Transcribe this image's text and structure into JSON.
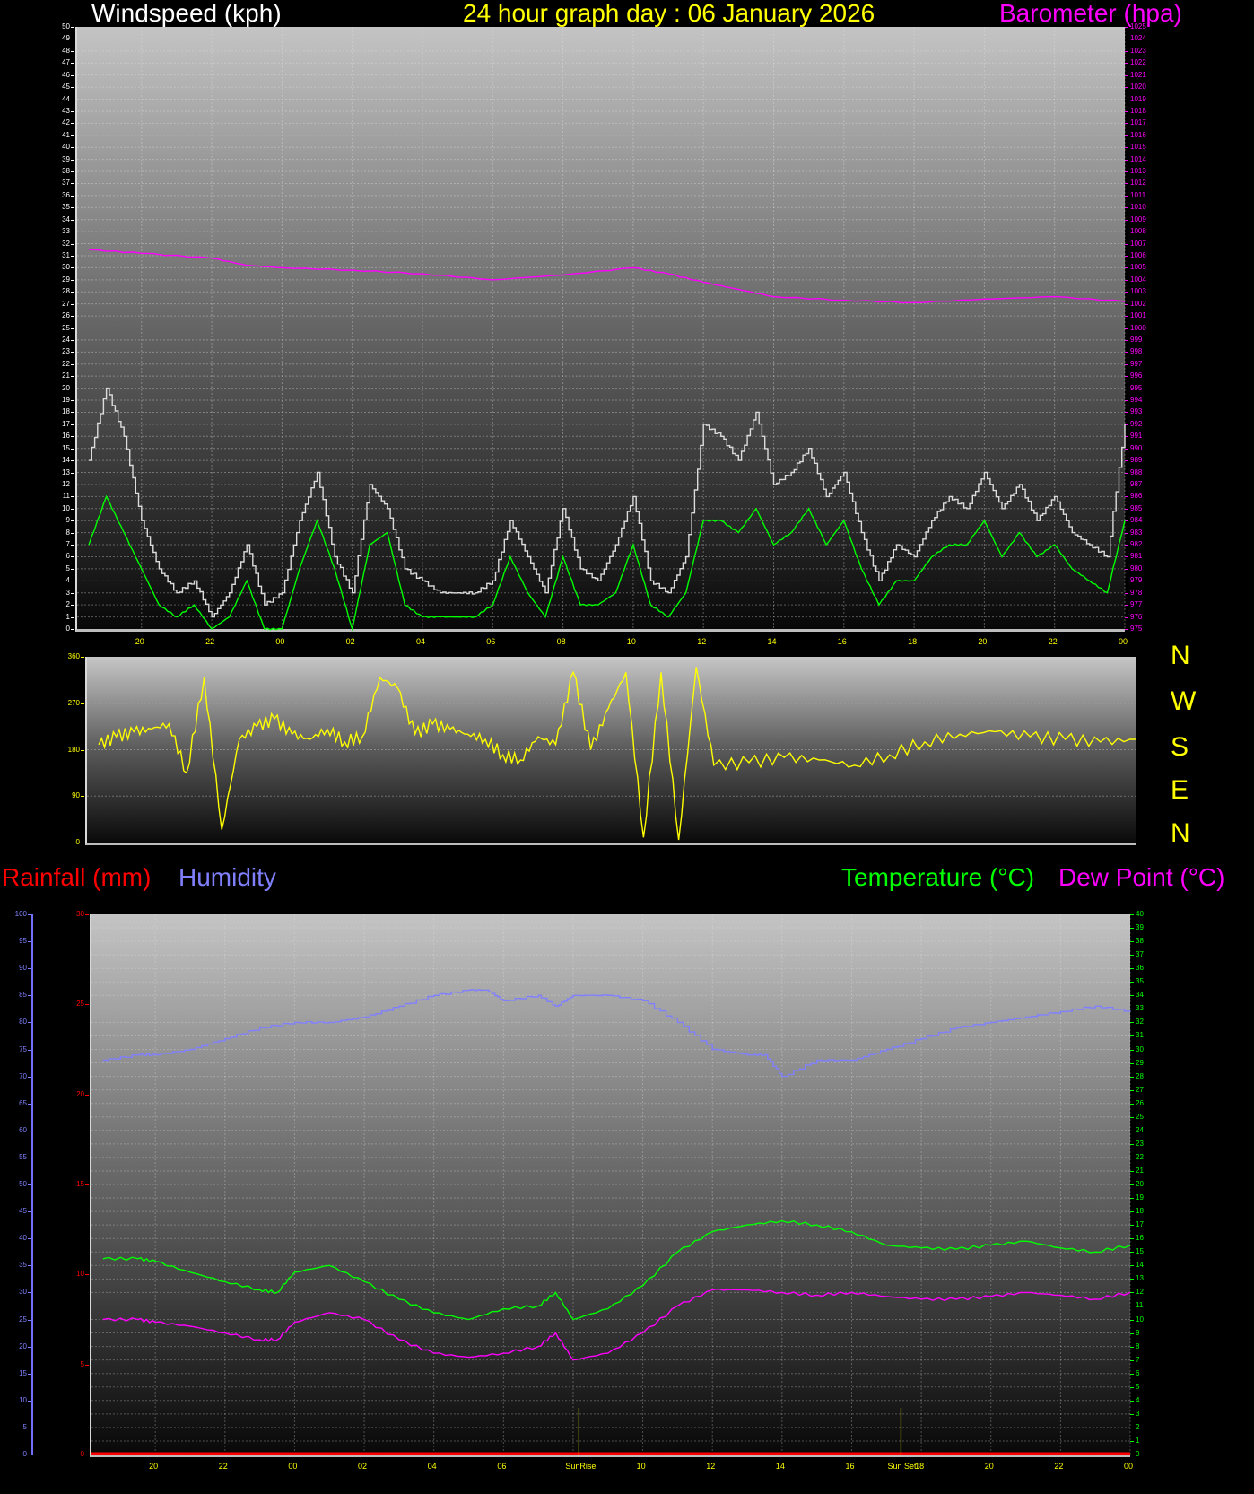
{
  "header": {
    "left_title": "Windspeed (kph)",
    "center_title": "24 hour graph day : 06 January 2026",
    "right_title": "Barometer (hpa)"
  },
  "colors": {
    "windspeed": "#ffffff",
    "title": "#ffff00",
    "barometer": "#ff00ff",
    "gust": "#dcdcdc",
    "avg_wind": "#00ff00",
    "wind_direction": "#ffff00",
    "rainfall": "#ff0000",
    "humidity": "#8080ff",
    "temperature": "#00ff00",
    "dew_point": "#ff00ff"
  },
  "compass": [
    "N",
    "W",
    "S",
    "E",
    "N"
  ],
  "lower_header": {
    "rainfall": "Rainfall (mm)",
    "humidity": "Humidity",
    "temperature": "Temperature (°C)",
    "dew_point": "Dew Point (°C)"
  },
  "annotations": {
    "sunrise": "SunRise",
    "sunset": "Sun Set"
  },
  "chart_data": [
    {
      "type": "line",
      "title": "Windspeed (kph) / Barometer (hpa)",
      "x_ticks": [
        "20",
        "22",
        "00",
        "02",
        "04",
        "06",
        "08",
        "10",
        "12",
        "14",
        "16",
        "18",
        "20",
        "22",
        "00"
      ],
      "ylabel": "Windspeed (kph)",
      "ylim": [
        0,
        50
      ],
      "y2label": "Barometer (hpa)",
      "y2lim": [
        975,
        1025
      ],
      "grid": true,
      "series": [
        {
          "name": "Wind gust (kph)",
          "color": "#dcdcdc",
          "x": [
            "18:30",
            "19:00",
            "19:30",
            "20:00",
            "20:30",
            "21:00",
            "21:30",
            "22:00",
            "22:30",
            "23:00",
            "23:30",
            "00:00",
            "00:30",
            "01:00",
            "01:30",
            "02:00",
            "02:30",
            "03:00",
            "03:30",
            "04:00",
            "04:30",
            "05:00",
            "05:30",
            "06:00",
            "06:30",
            "07:00",
            "07:30",
            "08:00",
            "08:30",
            "09:00",
            "09:30",
            "10:00",
            "10:30",
            "11:00",
            "11:30",
            "12:00",
            "12:30",
            "13:00",
            "13:30",
            "14:00",
            "14:30",
            "15:00",
            "15:30",
            "16:00",
            "16:30",
            "17:00",
            "17:30",
            "18:00",
            "18:30",
            "19:00",
            "19:30",
            "20:00",
            "20:30",
            "21:00",
            "21:30",
            "22:00",
            "22:30",
            "23:00",
            "23:30",
            "00:00"
          ],
          "values": [
            14,
            20,
            16,
            9,
            5,
            3,
            4,
            1,
            3,
            7,
            2,
            3,
            9,
            13,
            6,
            3,
            12,
            10,
            5,
            4,
            3,
            3,
            3,
            4,
            9,
            6,
            3,
            10,
            5,
            4,
            7,
            11,
            4,
            3,
            6,
            17,
            16,
            14,
            18,
            12,
            13,
            15,
            11,
            13,
            8,
            4,
            7,
            6,
            9,
            11,
            10,
            13,
            10,
            12,
            9,
            11,
            8,
            7,
            6,
            17
          ]
        },
        {
          "name": "Wind average (kph)",
          "color": "#00ff00",
          "x": [
            "18:30",
            "19:00",
            "19:30",
            "20:00",
            "20:30",
            "21:00",
            "21:30",
            "22:00",
            "22:30",
            "23:00",
            "23:30",
            "00:00",
            "00:30",
            "01:00",
            "01:30",
            "02:00",
            "02:30",
            "03:00",
            "03:30",
            "04:00",
            "04:30",
            "05:00",
            "05:30",
            "06:00",
            "06:30",
            "07:00",
            "07:30",
            "08:00",
            "08:30",
            "09:00",
            "09:30",
            "10:00",
            "10:30",
            "11:00",
            "11:30",
            "12:00",
            "12:30",
            "13:00",
            "13:30",
            "14:00",
            "14:30",
            "15:00",
            "15:30",
            "16:00",
            "16:30",
            "17:00",
            "17:30",
            "18:00",
            "18:30",
            "19:00",
            "19:30",
            "20:00",
            "20:30",
            "21:00",
            "21:30",
            "22:00",
            "22:30",
            "23:00",
            "23:30",
            "00:00"
          ],
          "values": [
            7,
            11,
            8,
            5,
            2,
            1,
            2,
            0,
            1,
            4,
            0,
            0,
            5,
            9,
            5,
            0,
            7,
            8,
            2,
            1,
            1,
            1,
            1,
            2,
            6,
            3,
            1,
            6,
            2,
            2,
            3,
            7,
            2,
            1,
            3,
            9,
            9,
            8,
            10,
            7,
            8,
            10,
            7,
            9,
            5,
            2,
            4,
            4,
            6,
            7,
            7,
            9,
            6,
            8,
            6,
            7,
            5,
            4,
            3,
            9
          ]
        },
        {
          "name": "Barometer (hpa)",
          "color": "#ff00ff",
          "axis": "y2",
          "x": [
            "18:30",
            "20:00",
            "22:00",
            "23:00",
            "00:00",
            "02:00",
            "04:00",
            "06:00",
            "08:00",
            "10:00",
            "11:00",
            "12:00",
            "13:00",
            "14:00",
            "16:00",
            "18:00",
            "20:00",
            "22:00",
            "00:00"
          ],
          "values": [
            1006.5,
            1006.2,
            1005.8,
            1005.2,
            1005.0,
            1004.8,
            1004.5,
            1004.0,
            1004.4,
            1005.0,
            1004.5,
            1003.8,
            1003.2,
            1002.6,
            1002.3,
            1002.1,
            1002.4,
            1002.6,
            1002.2
          ]
        }
      ]
    },
    {
      "type": "line",
      "title": "Wind direction",
      "x_ticks": [],
      "ylabel": "Wind direction (degrees)",
      "yticks": [
        0,
        90,
        180,
        270,
        360
      ],
      "ylim": [
        0,
        360
      ],
      "series": [
        {
          "name": "Wind direction",
          "color": "#ffff00",
          "x": [
            "18:30",
            "19:00",
            "19:30",
            "20:00",
            "20:30",
            "21:00",
            "21:30",
            "22:00",
            "22:30",
            "23:00",
            "23:30",
            "00:00",
            "00:30",
            "01:00",
            "01:30",
            "02:00",
            "02:30",
            "03:00",
            "03:30",
            "04:00",
            "04:30",
            "05:00",
            "05:30",
            "06:00",
            "06:30",
            "07:00",
            "07:30",
            "08:00",
            "08:30",
            "09:00",
            "09:30",
            "10:00",
            "10:30",
            "11:00",
            "11:30",
            "12:00",
            "13:00",
            "14:00",
            "15:00",
            "16:00",
            "17:00",
            "18:00",
            "19:00",
            "20:00",
            "21:00",
            "22:00",
            "23:00",
            "00:00"
          ],
          "values": [
            190,
            205,
            215,
            220,
            230,
            135,
            320,
            25,
            200,
            225,
            240,
            210,
            200,
            220,
            195,
            205,
            320,
            300,
            210,
            230,
            220,
            210,
            200,
            170,
            160,
            205,
            190,
            330,
            180,
            260,
            330,
            10,
            330,
            5,
            340,
            150,
            155,
            165,
            160,
            150,
            170,
            195,
            210,
            215,
            205,
            200,
            195,
            200
          ]
        }
      ]
    },
    {
      "type": "line",
      "title": "Rainfall (mm) / Humidity / Temperature (°C) / Dew Point (°C)",
      "x_ticks": [
        "20",
        "22",
        "00",
        "02",
        "04",
        "06",
        "SunRise",
        "10",
        "12",
        "14",
        "16",
        "Sun Set",
        "18",
        "20",
        "22",
        "00"
      ],
      "ylabel": "Rainfall (mm)",
      "ylim": [
        0,
        30
      ],
      "humidity_axis": {
        "label": "Humidity",
        "ylim": [
          0,
          100
        ]
      },
      "y2label": "Temperature (°C) / Dew Point (°C)",
      "y2lim": [
        0,
        40
      ],
      "grid": true,
      "series": [
        {
          "name": "Humidity (%)",
          "color": "#8080ff",
          "x": [
            "18:30",
            "19:30",
            "20:00",
            "21:00",
            "22:00",
            "23:00",
            "00:00",
            "01:00",
            "02:00",
            "03:00",
            "04:00",
            "05:00",
            "05:30",
            "06:00",
            "07:00",
            "07:30",
            "08:00",
            "09:00",
            "10:00",
            "11:00",
            "12:00",
            "13:00",
            "13:30",
            "14:00",
            "15:00",
            "16:00",
            "17:00",
            "18:00",
            "19:00",
            "20:00",
            "21:00",
            "22:00",
            "23:00",
            "00:00"
          ],
          "values": [
            73,
            74,
            74,
            75,
            77,
            79,
            80,
            80,
            81,
            83,
            85,
            86,
            86,
            84,
            85,
            83,
            85,
            85,
            84,
            80,
            75,
            74,
            74,
            70,
            73,
            73,
            75,
            77,
            79,
            80,
            81,
            82,
            83,
            82
          ]
        },
        {
          "name": "Rainfall (mm)",
          "color": "#ff0000",
          "x": [
            "18:30",
            "00:00"
          ],
          "values": [
            0,
            0
          ]
        },
        {
          "name": "Temperature (°C)",
          "color": "#00ff00",
          "axis": "y2",
          "x": [
            "18:30",
            "19:30",
            "20:00",
            "21:00",
            "22:00",
            "23:00",
            "23:30",
            "00:00",
            "01:00",
            "02:00",
            "03:00",
            "04:00",
            "05:00",
            "06:00",
            "07:00",
            "07:30",
            "08:00",
            "09:00",
            "10:00",
            "11:00",
            "12:00",
            "13:00",
            "14:00",
            "15:00",
            "16:00",
            "17:00",
            "18:00",
            "19:00",
            "20:00",
            "21:00",
            "22:00",
            "23:00",
            "00:00"
          ],
          "values": [
            14.5,
            14.5,
            14.3,
            13.5,
            12.8,
            12.2,
            12.0,
            13.5,
            14.0,
            12.8,
            11.5,
            10.5,
            10.0,
            10.8,
            11.0,
            12.0,
            10.0,
            10.8,
            12.5,
            15.0,
            16.5,
            17.0,
            17.3,
            17.0,
            16.5,
            15.5,
            15.3,
            15.2,
            15.5,
            15.8,
            15.3,
            15.0,
            15.5
          ]
        },
        {
          "name": "Dew Point (°C)",
          "color": "#ff00ff",
          "axis": "y2",
          "x": [
            "18:30",
            "19:30",
            "20:00",
            "21:00",
            "22:00",
            "23:00",
            "23:30",
            "00:00",
            "01:00",
            "02:00",
            "03:00",
            "04:00",
            "05:00",
            "06:00",
            "07:00",
            "07:30",
            "08:00",
            "09:00",
            "10:00",
            "11:00",
            "12:00",
            "13:00",
            "14:00",
            "15:00",
            "16:00",
            "17:00",
            "18:00",
            "19:00",
            "20:00",
            "21:00",
            "22:00",
            "23:00",
            "00:00"
          ],
          "values": [
            10.0,
            10.0,
            9.8,
            9.5,
            9.0,
            8.5,
            8.5,
            9.8,
            10.5,
            10.0,
            8.5,
            7.5,
            7.2,
            7.5,
            8.0,
            9.0,
            7.0,
            7.5,
            9.0,
            11.0,
            12.2,
            12.2,
            12.0,
            11.8,
            12.0,
            11.7,
            11.5,
            11.5,
            11.7,
            12.0,
            11.8,
            11.5,
            12.0
          ]
        }
      ],
      "markers": [
        {
          "label": "SunRise",
          "time": "08:10",
          "color": "#ffff00"
        },
        {
          "label": "Sun Set",
          "time": "17:25",
          "color": "#ffff00"
        }
      ]
    }
  ]
}
